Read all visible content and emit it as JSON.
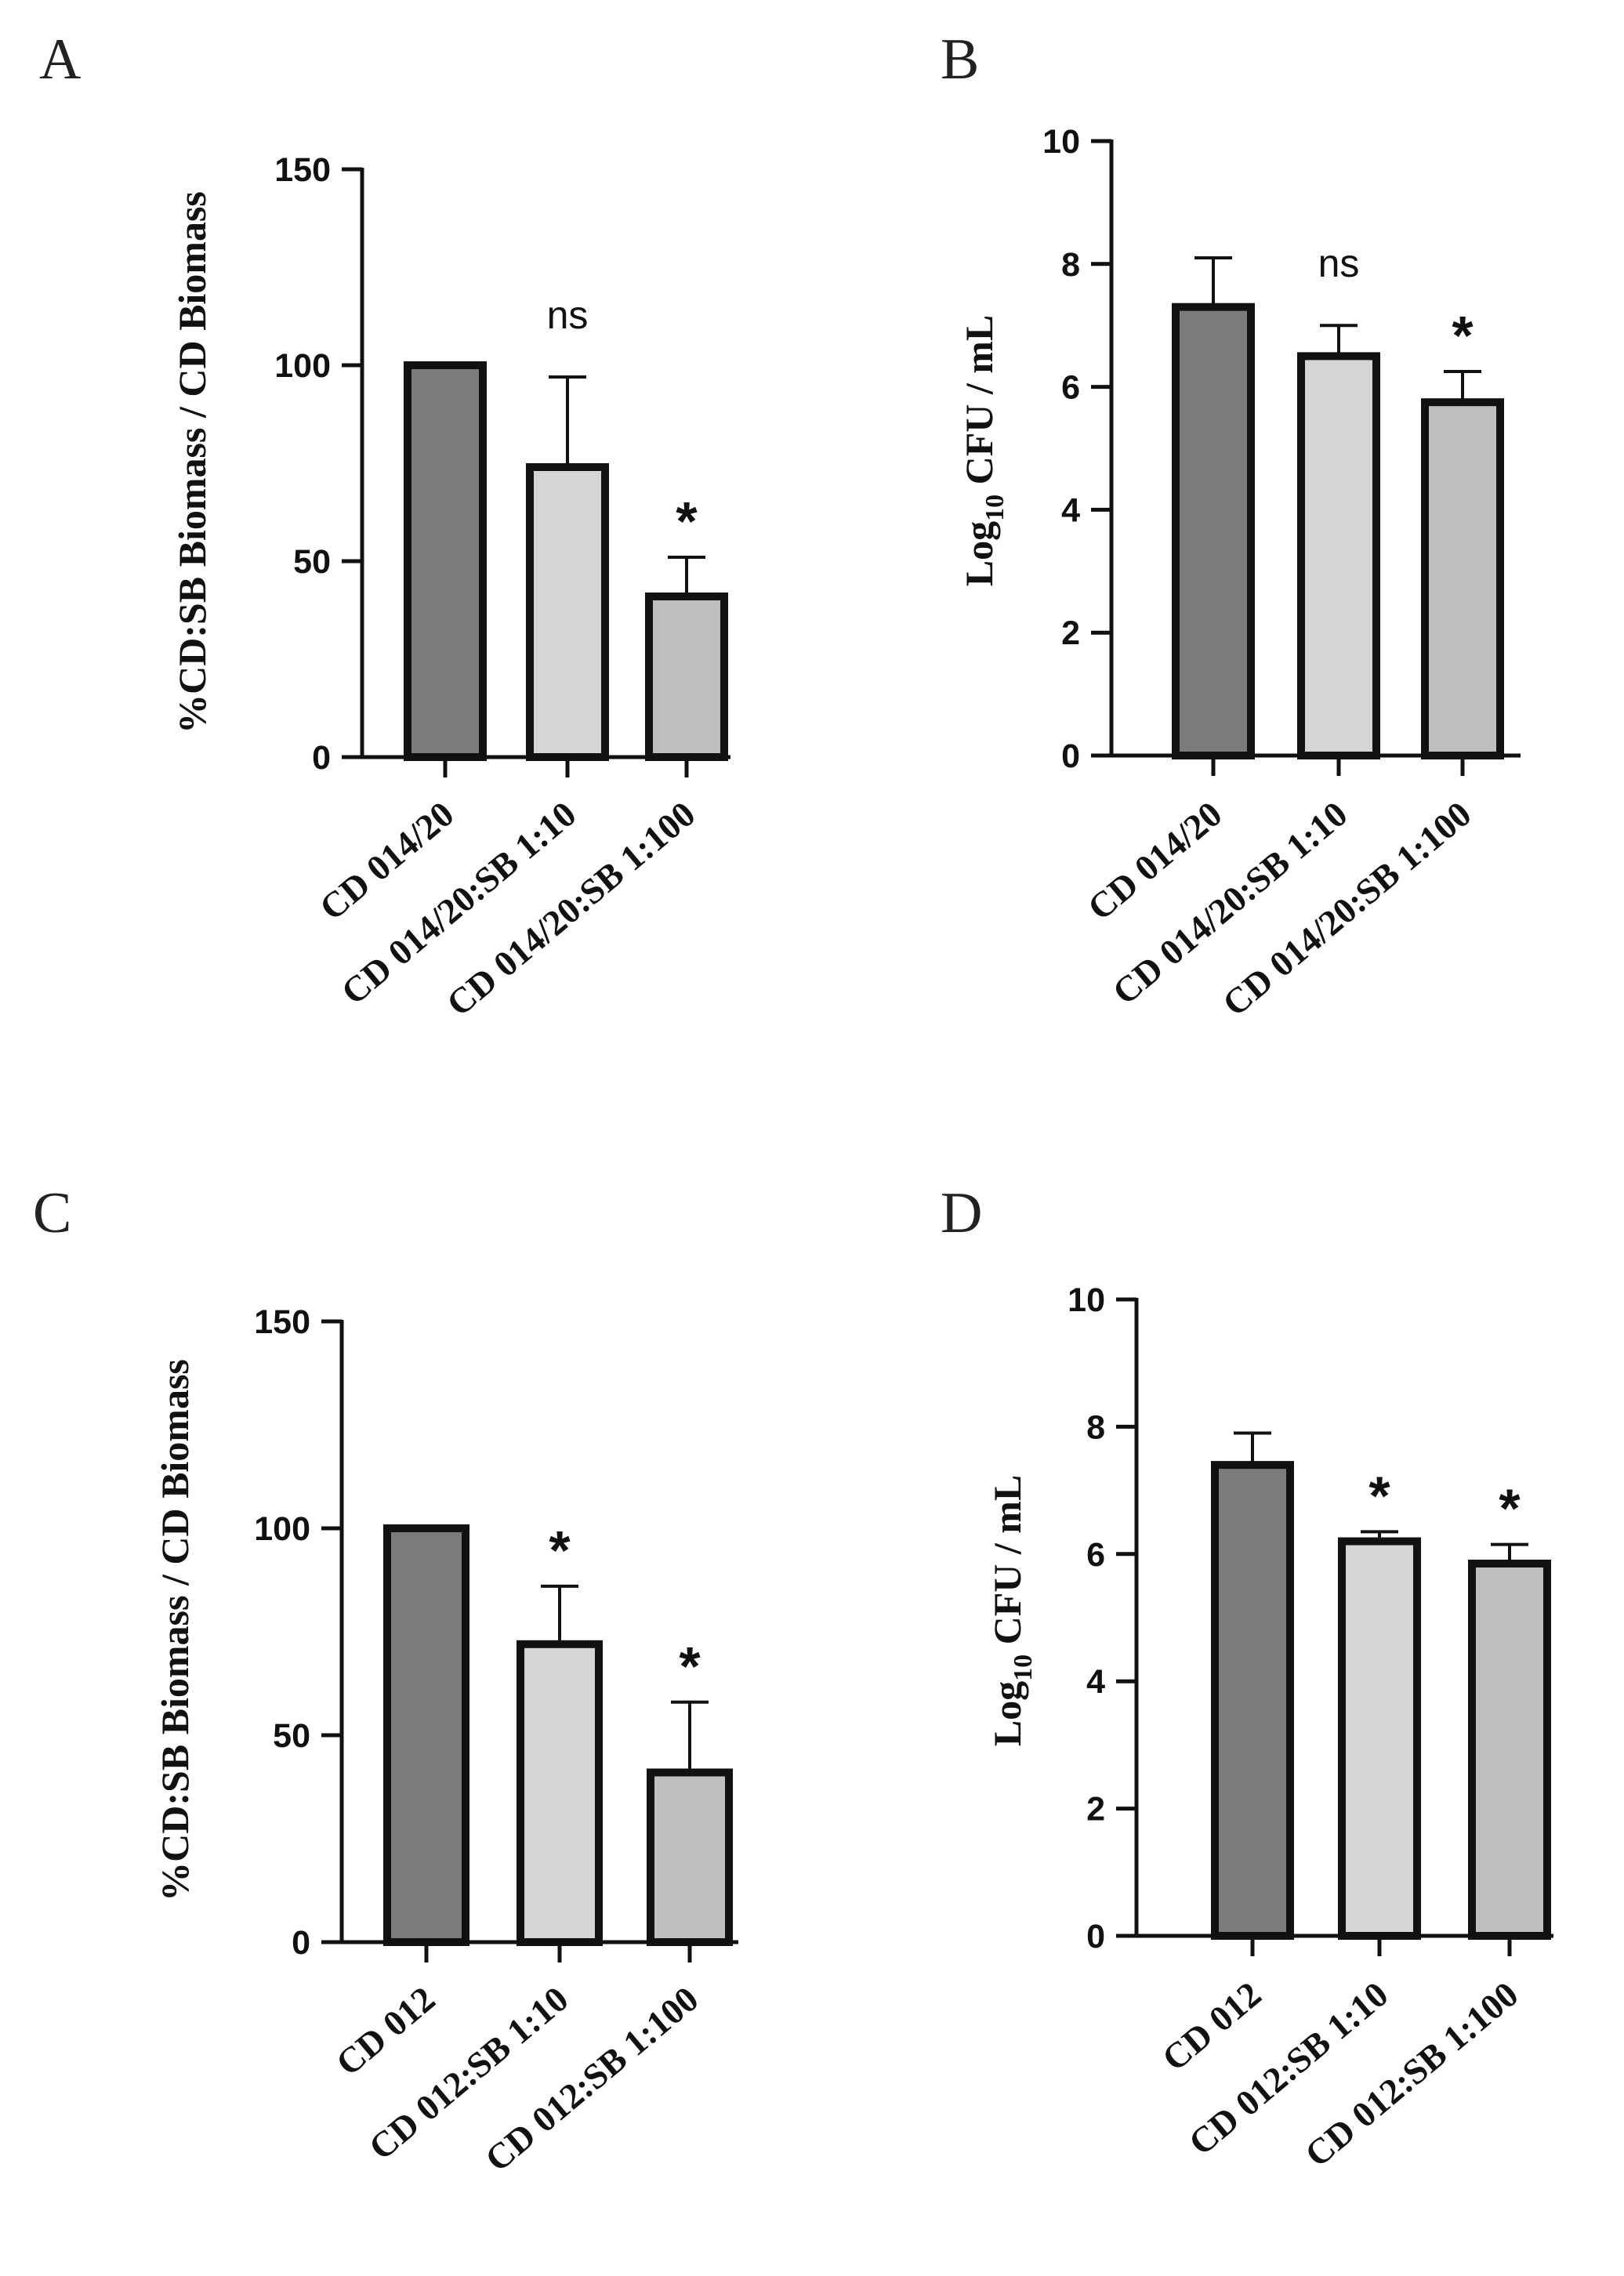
{
  "chart_data": [
    {
      "panel": "A",
      "type": "bar",
      "ylabel": "%CD:SB Biomass / CD Biomass",
      "ylim": [
        0,
        150
      ],
      "yticks": [
        0,
        50,
        100,
        150
      ],
      "categories": [
        "CD 014/20",
        "CD 014/20:SB 1:10",
        "CD 014/20:SB 1:100"
      ],
      "values": [
        100,
        74,
        41
      ],
      "errors": [
        0,
        23,
        10
      ],
      "annotations": [
        "",
        "ns",
        "*"
      ],
      "colors": [
        "#7b7b7b",
        "#d5d5d5",
        "#bebebe"
      ]
    },
    {
      "panel": "B",
      "type": "bar",
      "ylabel_main": "Log",
      "ylabel_sub": "10",
      "ylabel_rest": " CFU / mL",
      "ylim": [
        0,
        10
      ],
      "yticks": [
        0,
        2,
        4,
        6,
        8,
        10
      ],
      "categories": [
        "CD 014/20",
        "CD 014/20:SB 1:10",
        "CD 014/20:SB 1:100"
      ],
      "values": [
        7.3,
        6.5,
        5.75
      ],
      "errors": [
        0.8,
        0.5,
        0.5
      ],
      "annotations": [
        "",
        "ns",
        "*"
      ],
      "colors": [
        "#7b7b7b",
        "#d5d5d5",
        "#bebebe"
      ]
    },
    {
      "panel": "C",
      "type": "bar",
      "ylabel": "%CD:SB Biomass / CD Biomass",
      "ylim": [
        0,
        150
      ],
      "yticks": [
        0,
        50,
        100,
        150
      ],
      "categories": [
        "CD 012",
        "CD 012:SB 1:10",
        "CD 012:SB 1:100"
      ],
      "values": [
        100,
        72,
        41
      ],
      "errors": [
        0,
        14,
        17
      ],
      "annotations": [
        "",
        "*",
        "*"
      ],
      "colors": [
        "#7b7b7b",
        "#d5d5d5",
        "#bebebe"
      ]
    },
    {
      "panel": "D",
      "type": "bar",
      "ylabel_main": "Log",
      "ylabel_sub": "10",
      "ylabel_rest": " CFU / mL",
      "ylim": [
        0,
        10
      ],
      "yticks": [
        0,
        2,
        4,
        6,
        8,
        10
      ],
      "categories": [
        "CD 012",
        "CD 012:SB 1:10",
        "CD 012:SB 1:100"
      ],
      "values": [
        7.4,
        6.2,
        5.85
      ],
      "errors": [
        0.5,
        0.15,
        0.3
      ],
      "annotations": [
        "",
        "*",
        "*"
      ],
      "colors": [
        "#7b7b7b",
        "#d5d5d5",
        "#bebebe"
      ]
    }
  ]
}
